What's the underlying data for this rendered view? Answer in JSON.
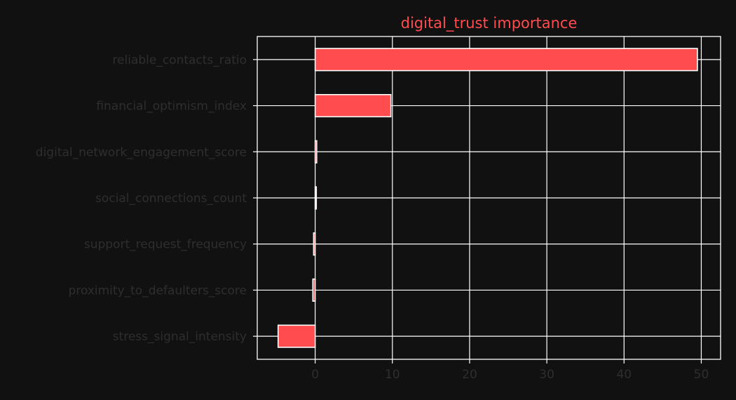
{
  "chart_data": {
    "type": "bar",
    "orientation": "horizontal",
    "title": "digital_trust importance",
    "xlabel": "",
    "ylabel": "",
    "categories": [
      "reliable_contacts_ratio",
      "financial_optimism_index",
      "digital_network_engagement_score",
      "social_connections_count",
      "support_request_frequency",
      "proximity_to_defaulters_score",
      "stress_signal_intensity"
    ],
    "values": [
      49.5,
      9.8,
      0.2,
      0.15,
      -0.2,
      -0.3,
      -4.8
    ],
    "xlim": [
      -7.5,
      52.5
    ],
    "xticks": [
      0,
      10,
      20,
      30,
      40,
      50
    ],
    "grid": true,
    "legend": "none",
    "colors": {
      "bar": "#ff4c4f",
      "title": "#ff4c4f",
      "background": "#111111",
      "grid": "#ffffff",
      "text": "#2e2e2e"
    }
  }
}
